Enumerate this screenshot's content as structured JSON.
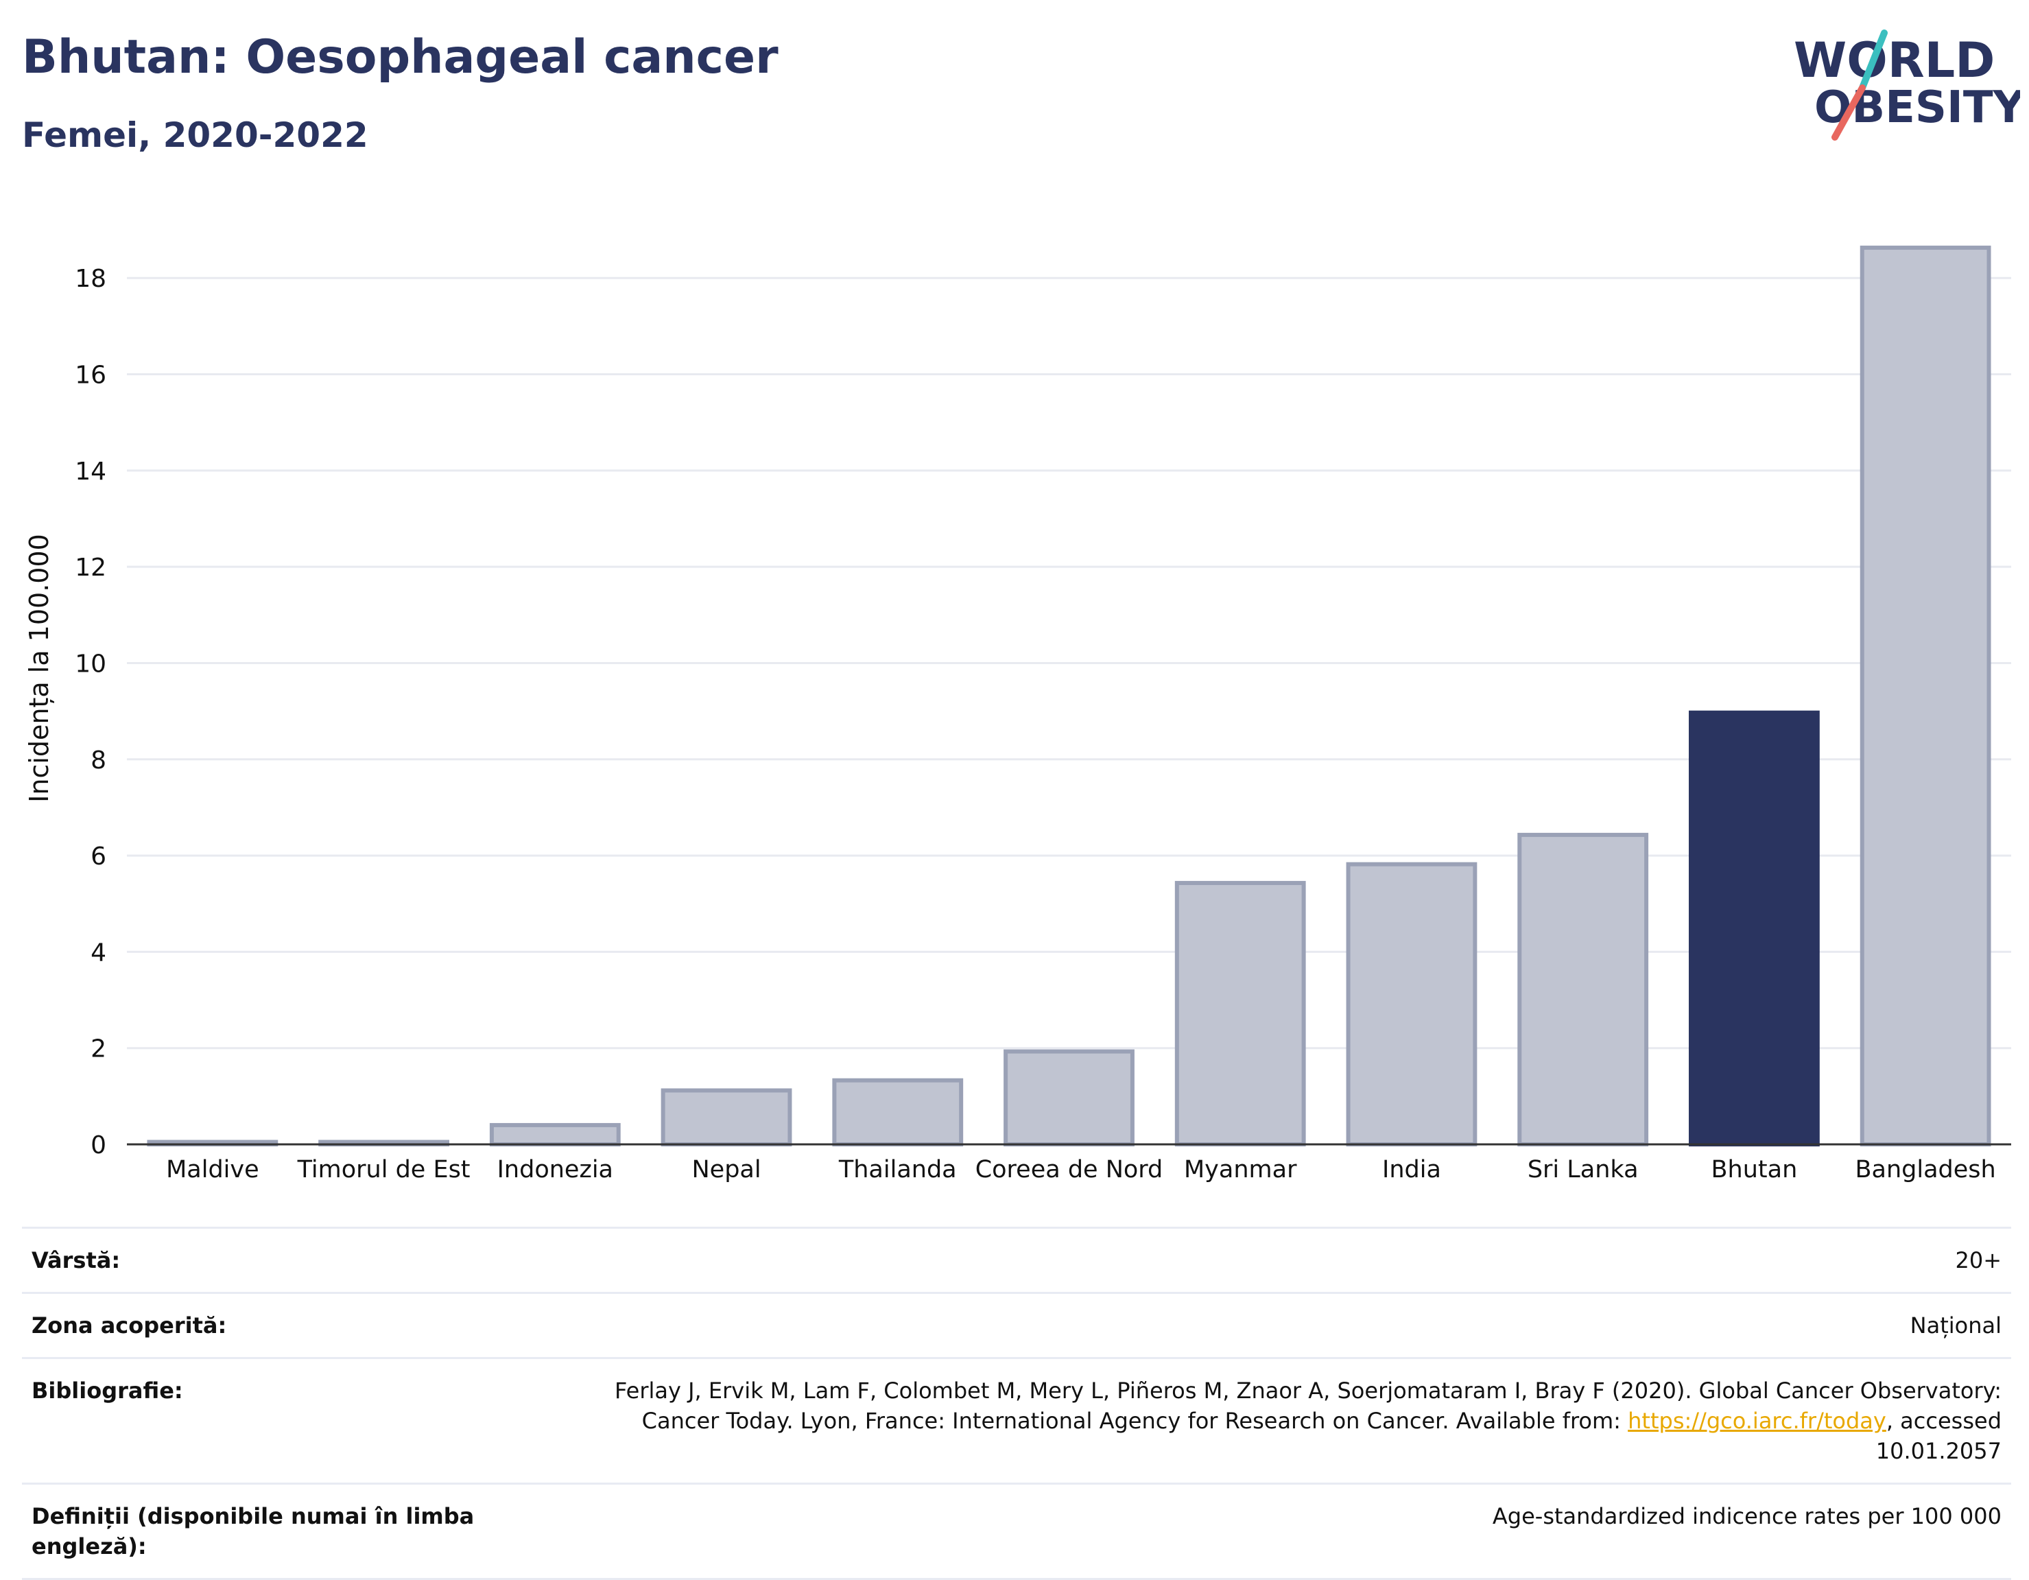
{
  "header": {
    "title": "Bhutan: Oesophageal cancer",
    "subtitle": "Femei, 2020-2022"
  },
  "logo": {
    "line1": "WORLD",
    "line2": "OBESITY",
    "colors": {
      "text": "#2a3460",
      "slash_top": "#3bbfbf",
      "slash_bottom": "#e8675f"
    }
  },
  "chart_data": {
    "type": "bar",
    "ylabel": "Incidența la 100.000",
    "ylim": [
      0,
      19.5
    ],
    "yticks": [
      0,
      2,
      4,
      6,
      8,
      10,
      12,
      14,
      16,
      18
    ],
    "grid": true,
    "categories": [
      "Maldive",
      "Timorul de Est",
      "Indonezia",
      "Nepal",
      "Thailanda",
      "Coreea de Nord",
      "Myanmar",
      "India",
      "Sri Lanka",
      "Bhutan",
      "Bangladesh"
    ],
    "values": [
      0.05,
      0.05,
      0.4,
      1.12,
      1.33,
      1.93,
      5.43,
      5.82,
      6.43,
      8.97,
      18.63
    ],
    "highlight": "Bhutan",
    "colors": {
      "bar": "#c0c4d1",
      "bar_stroke": "#9aa1b6",
      "highlight": "#2a3460",
      "grid": "#e8eaf0",
      "axis": "#333333"
    }
  },
  "meta": {
    "age_label": "Vârstă:",
    "age_value": "20+",
    "coverage_label": "Zona acoperită:",
    "coverage_value": "Național",
    "biblio_label": "Bibliografie:",
    "biblio_text": "Ferlay J, Ervik M, Lam F, Colombet M, Mery L, Piñeros M, Znaor A, Soerjomataram I, Bray F (2020). Global Cancer Observatory: Cancer Today. Lyon, France: International Agency for Research on Cancer. Available from: ",
    "biblio_link": "https://gco.iarc.fr/today",
    "biblio_suffix": ", accessed 10.01.2057",
    "def_label": "Definiții (disponibile numai în limba engleză):",
    "def_value": "Age-standardized indicence rates per 100 000"
  }
}
